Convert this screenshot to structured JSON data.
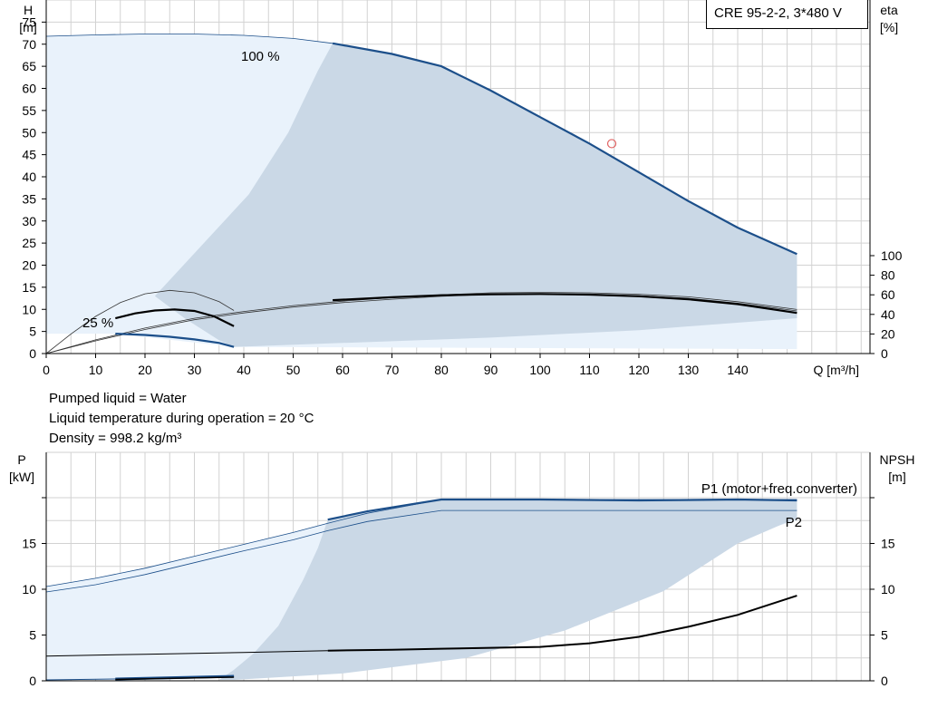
{
  "title_box": "CRE 95-2-2, 3*480 V",
  "info": {
    "line1": "Pumped liquid = Water",
    "line2": "Liquid temperature during operation = 20 °C",
    "line3": "Density = 998.2 kg/m³"
  },
  "colors": {
    "curve_blue": "#1c4f8a",
    "band_dark": "#cad8e6",
    "band_light": "#e9f2fb",
    "grid": "#d2d2d2",
    "marker": "#e06060"
  },
  "chart_data": [
    {
      "type": "line",
      "name": "head_efficiency",
      "xlabel": "Q [m³/h]",
      "ylabel_left": [
        "H",
        "[m]"
      ],
      "ylabel_right": [
        "eta",
        "[%]"
      ],
      "xlim": [
        0,
        160
      ],
      "ylim": [
        0,
        80
      ],
      "eta_lim": [
        0,
        100
      ],
      "x_ticks": [
        "0",
        "10",
        "20",
        "30",
        "40",
        "50",
        "60",
        "70",
        "80",
        "90",
        "100",
        "110",
        "120",
        "130",
        "140"
      ],
      "y_ticks": [
        "0",
        "5",
        "10",
        "15",
        "20",
        "25",
        "30",
        "35",
        "40",
        "45",
        "50",
        "55",
        "60",
        "65",
        "70",
        "75"
      ],
      "eta_ticks": [
        "0",
        "20",
        "40",
        "60",
        "80",
        "100"
      ],
      "annotations": {
        "speed_max": "100 %",
        "speed_min": "25 %"
      },
      "head_100": {
        "x": [
          0,
          10,
          20,
          30,
          40,
          50,
          58,
          70,
          80,
          90,
          100,
          110,
          120,
          130,
          140,
          152
        ],
        "y": [
          71.8,
          72.1,
          72.3,
          72.3,
          72.0,
          71.3,
          70.2,
          67.8,
          65.0,
          59.5,
          53.5,
          47.5,
          41.0,
          34.5,
          28.5,
          22.5
        ]
      },
      "head_25": {
        "x": [
          14,
          20,
          25,
          30,
          35,
          38
        ],
        "y": [
          4.5,
          4.2,
          3.8,
          3.2,
          2.4,
          1.5
        ]
      },
      "eta_bold": {
        "x": [
          58,
          70,
          80,
          90,
          100,
          110,
          120,
          130,
          140,
          152
        ],
        "y": [
          54.5,
          57.5,
          59.5,
          60.5,
          60.8,
          60.2,
          58.5,
          55.5,
          50.5,
          41.5
        ]
      },
      "eta_thin_outer": {
        "x": [
          0,
          10,
          20,
          30,
          40,
          50,
          60,
          70,
          80,
          90,
          100,
          110,
          120,
          130,
          140,
          152
        ],
        "y": [
          0,
          14,
          26,
          36,
          43,
          49,
          53.5,
          57,
          60,
          62,
          62.5,
          62,
          60.5,
          58,
          53,
          45
        ]
      },
      "eta_thin_inner": {
        "x": [
          0,
          10,
          20,
          30,
          40,
          50,
          60,
          70,
          80,
          90,
          100,
          110,
          120,
          130,
          140,
          152
        ],
        "y": [
          0,
          13,
          24.5,
          34.5,
          41.5,
          47.5,
          52,
          55.5,
          58.5,
          60.5,
          61,
          60.5,
          59,
          56.5,
          51.5,
          43.5
        ]
      },
      "eta_low_bold": {
        "x": [
          14,
          18,
          22,
          26,
          30,
          34,
          38
        ],
        "y": [
          36,
          41,
          44,
          45,
          43.5,
          38,
          28
        ]
      },
      "eta_low_thin": {
        "x": [
          0,
          5,
          10,
          15,
          20,
          25,
          30,
          35,
          38
        ],
        "y": [
          0,
          20,
          38,
          52,
          61,
          64.5,
          62,
          53,
          44
        ]
      },
      "operating_point": {
        "x": 114.5,
        "y": 47.5
      }
    },
    {
      "type": "line",
      "name": "power_npsh",
      "xlim": [
        0,
        160
      ],
      "ylabel_left": [
        "P",
        "[kW]"
      ],
      "ylabel_right": [
        "NPSH",
        "[m]"
      ],
      "ylim": [
        0,
        20
      ],
      "y_ticks": [
        "0",
        "5",
        "10",
        "15"
      ],
      "npsh_ticks": [
        "0",
        "5",
        "10",
        "15"
      ],
      "legend": {
        "p1": "P1 (motor+freq.converter)",
        "p2": "P2"
      },
      "p1_bold": {
        "x": [
          57,
          65,
          80,
          100,
          120,
          140,
          152
        ],
        "y": [
          17.6,
          18.5,
          19.8,
          19.8,
          19.7,
          19.8,
          19.7
        ]
      },
      "p1_thin": {
        "x": [
          0,
          10,
          20,
          30,
          40,
          50,
          57,
          65,
          80,
          100,
          152
        ],
        "y": [
          10.3,
          11.2,
          12.3,
          13.6,
          14.9,
          16.2,
          17.2,
          18.3,
          19.8,
          19.8,
          19.8
        ]
      },
      "p2_thin": {
        "x": [
          0,
          10,
          20,
          30,
          40,
          50,
          57,
          65,
          80,
          100,
          152
        ],
        "y": [
          9.7,
          10.5,
          11.6,
          12.9,
          14.2,
          15.4,
          16.4,
          17.4,
          18.6,
          18.6,
          18.6
        ]
      },
      "p_low": {
        "x": [
          0,
          14,
          38
        ],
        "y": [
          0.1,
          0.2,
          0.5
        ]
      },
      "npsh_bold": {
        "x": [
          57,
          70,
          80,
          90,
          100,
          110,
          120,
          130,
          140,
          152
        ],
        "y": [
          3.3,
          3.4,
          3.5,
          3.6,
          3.7,
          4.1,
          4.8,
          5.9,
          7.2,
          9.3
        ]
      },
      "npsh_thin": {
        "x": [
          0,
          20,
          40,
          57
        ],
        "y": [
          2.7,
          2.9,
          3.1,
          3.3
        ]
      }
    }
  ]
}
